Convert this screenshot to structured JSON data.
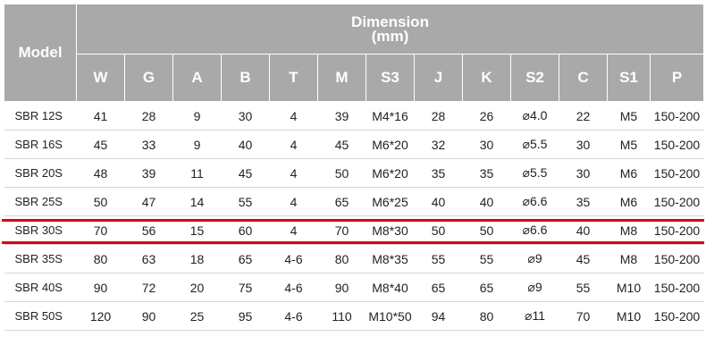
{
  "header": {
    "model_label": "Model",
    "group_title": "Dimension",
    "group_unit": "(mm)",
    "columns": [
      "W",
      "G",
      "A",
      "B",
      "T",
      "M",
      "S3",
      "J",
      "K",
      "S2",
      "C",
      "S1",
      "P"
    ]
  },
  "rows": [
    [
      "SBR 12S",
      "41",
      "28",
      "9",
      "30",
      "4",
      "39",
      "M4*16",
      "28",
      "26",
      "⌀4.0",
      "22",
      "M5",
      "150-200"
    ],
    [
      "SBR 16S",
      "45",
      "33",
      "9",
      "40",
      "4",
      "45",
      "M6*20",
      "32",
      "30",
      "⌀5.5",
      "30",
      "M5",
      "150-200"
    ],
    [
      "SBR 20S",
      "48",
      "39",
      "11",
      "45",
      "4",
      "50",
      "M6*20",
      "35",
      "35",
      "⌀5.5",
      "30",
      "M6",
      "150-200"
    ],
    [
      "SBR 25S",
      "50",
      "47",
      "14",
      "55",
      "4",
      "65",
      "M6*25",
      "40",
      "40",
      "⌀6.6",
      "35",
      "M6",
      "150-200"
    ],
    [
      "SBR 30S",
      "70",
      "56",
      "15",
      "60",
      "4",
      "70",
      "M8*30",
      "50",
      "50",
      "⌀6.6",
      "40",
      "M8",
      "150-200"
    ],
    [
      "SBR 35S",
      "80",
      "63",
      "18",
      "65",
      "4-6",
      "80",
      "M8*35",
      "55",
      "55",
      "⌀9",
      "45",
      "M8",
      "150-200"
    ],
    [
      "SBR 40S",
      "90",
      "72",
      "20",
      "75",
      "4-6",
      "90",
      "M8*40",
      "65",
      "65",
      "⌀9",
      "55",
      "M10",
      "150-200"
    ],
    [
      "SBR 50S",
      "120",
      "90",
      "25",
      "95",
      "4-6",
      "110",
      "M10*50",
      "94",
      "80",
      "⌀11",
      "70",
      "M10",
      "150-200"
    ]
  ],
  "highlighted_row": "SBR 30S",
  "colors": {
    "header_bg": "#a9a9a9",
    "highlight": "#d9001b"
  }
}
